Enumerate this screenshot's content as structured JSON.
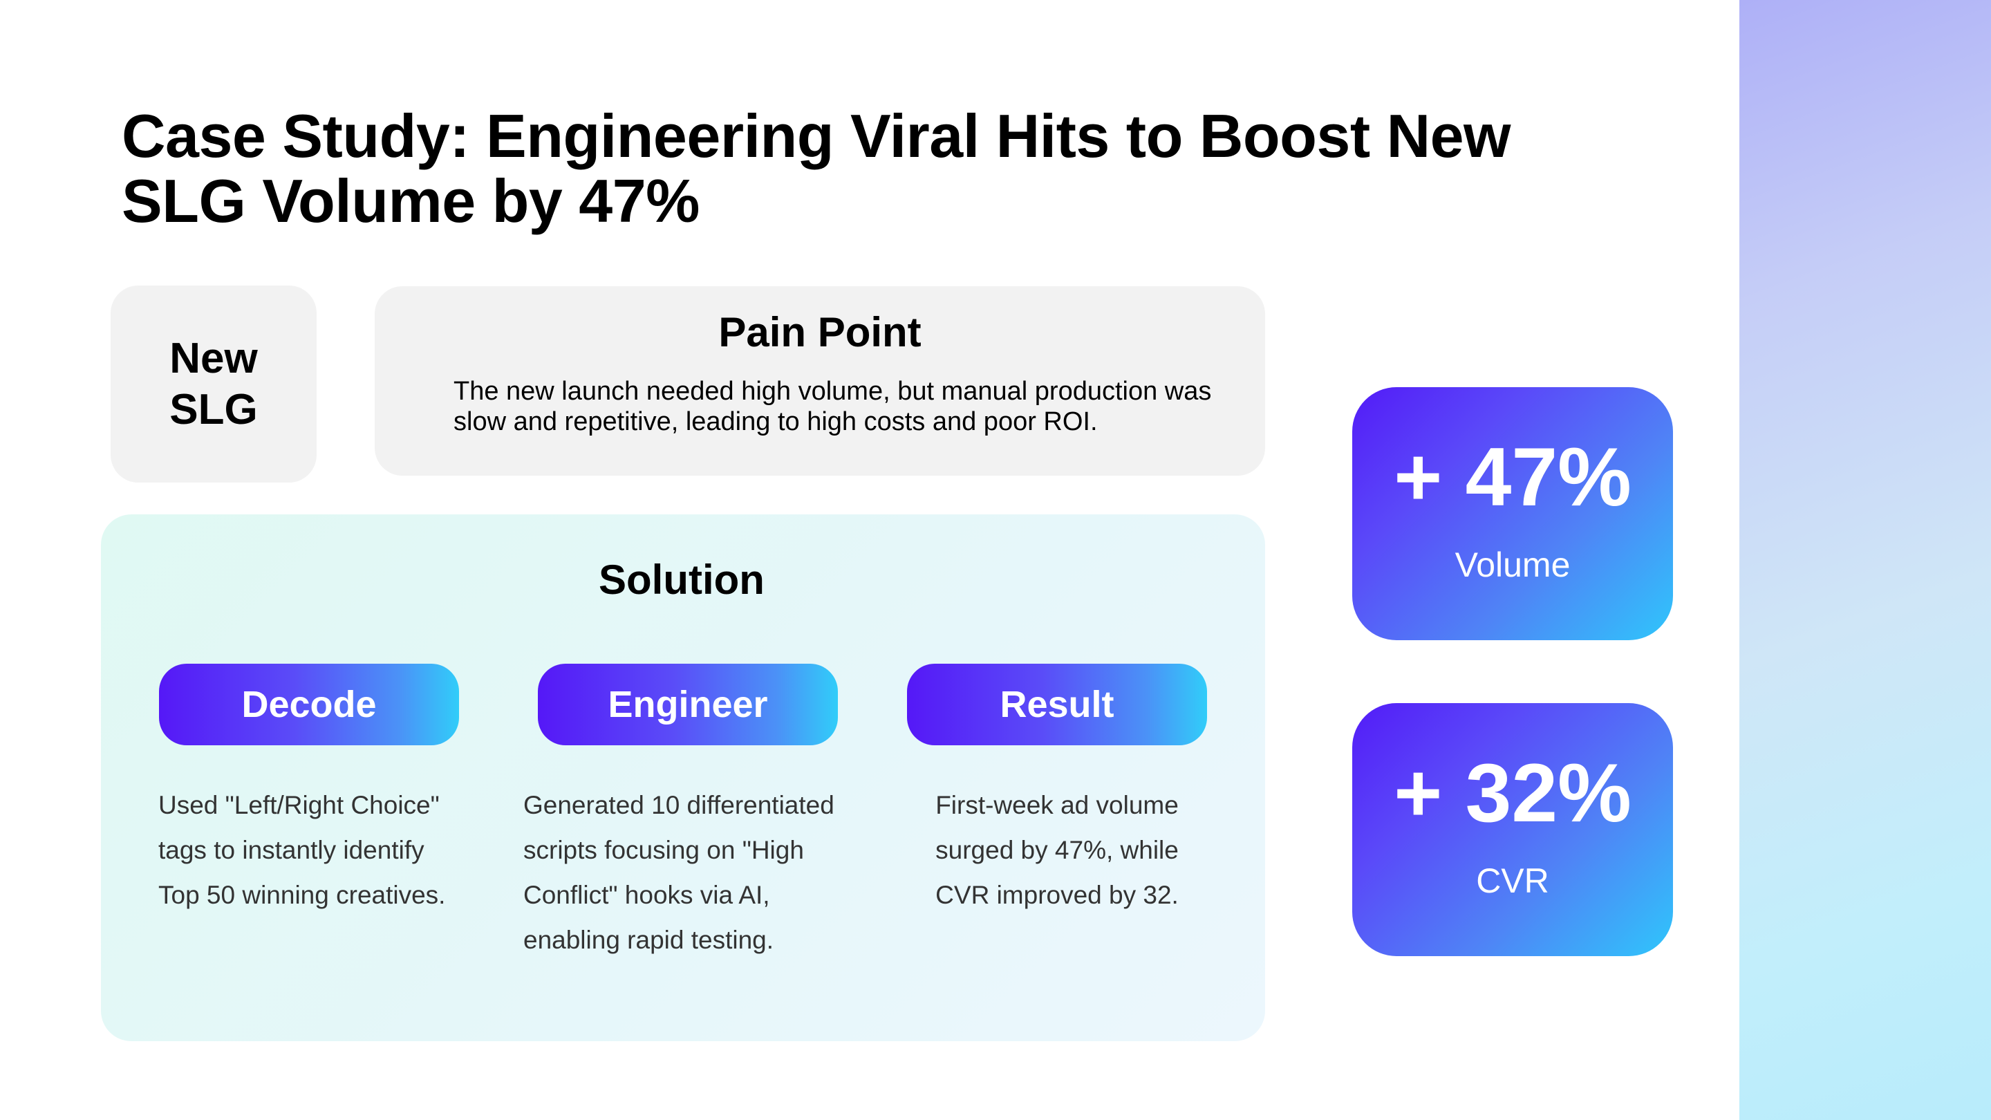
{
  "slide": {
    "title": "Case Study: Engineering Viral Hits to Boost New SLG Volume by 47%"
  },
  "tag": {
    "label": "New SLG"
  },
  "pain_point": {
    "title": "Pain Point",
    "body": "The new launch needed high volume, but manual production was slow and repetitive, leading to high costs and poor ROI."
  },
  "solution": {
    "title": "Solution",
    "steps": [
      {
        "label": "Decode",
        "text": "Used \"Left/Right Choice\" tags to instantly identify Top 50 winning creatives."
      },
      {
        "label": "Engineer",
        "text": "Generated 10 differentiated scripts focusing on \"High Conflict\" hooks via AI, enabling rapid testing."
      },
      {
        "label": "Result",
        "text": "First-week ad volume surged by 47%, while CVR improved by 32."
      }
    ]
  },
  "stats": [
    {
      "value": "+ 47%",
      "label": "Volume"
    },
    {
      "value": "+ 32%",
      "label": "CVR"
    }
  ],
  "colors": {
    "gradient_start": "#5518f7",
    "gradient_end": "#31cdf9",
    "card_gray": "#f2f2f2",
    "solution_bg": "#e4f8f7"
  }
}
